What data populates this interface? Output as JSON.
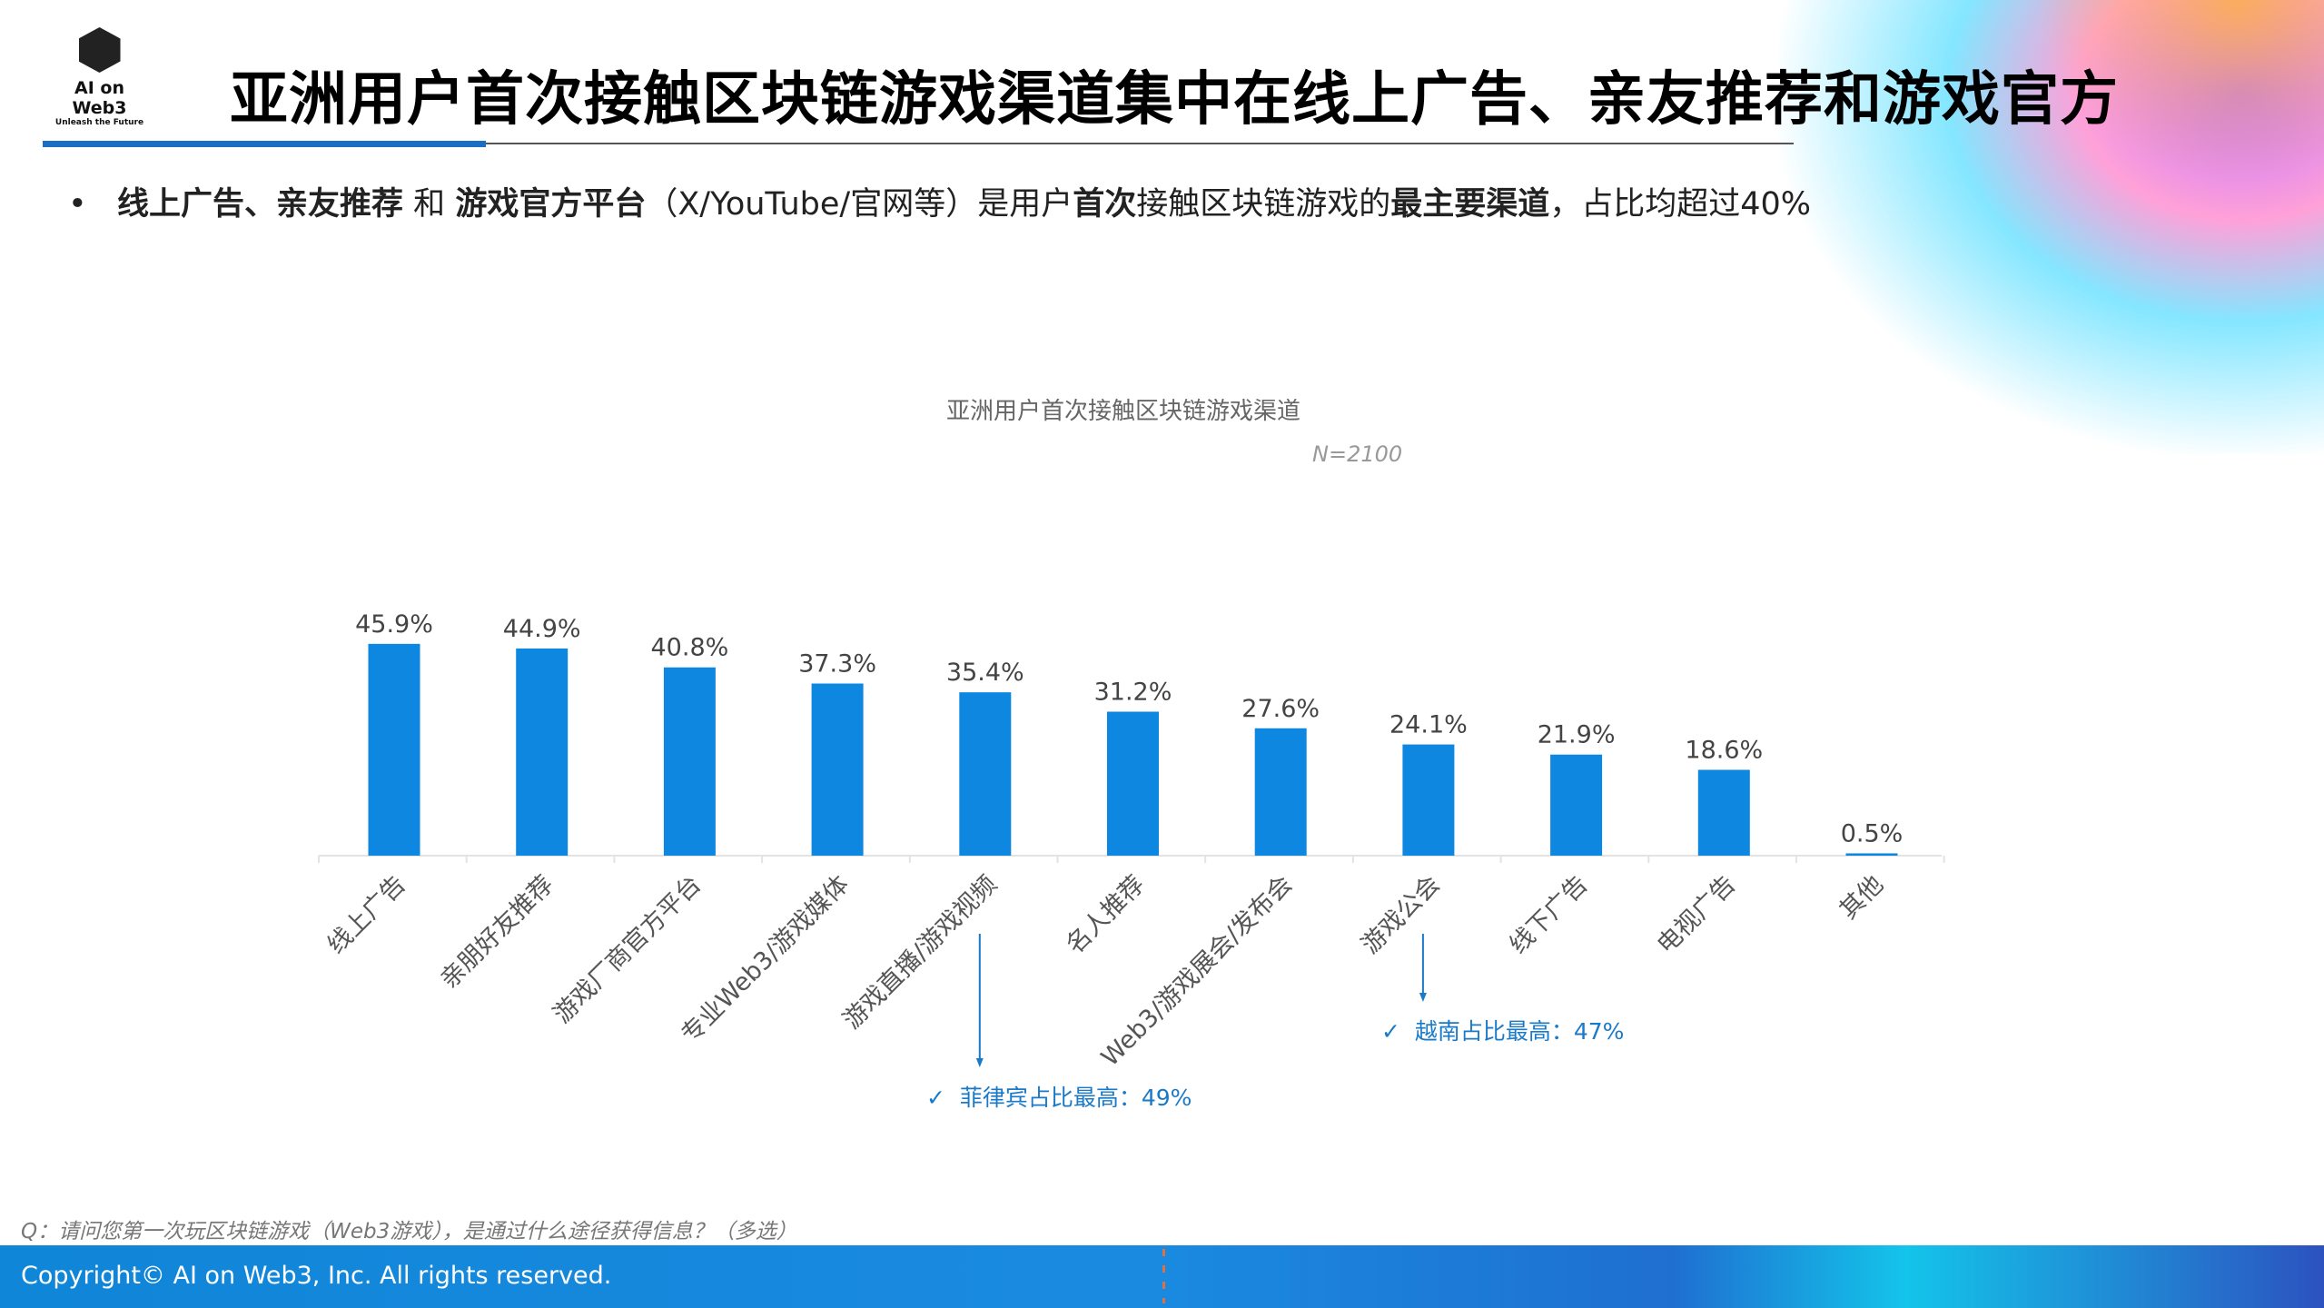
{
  "header": {
    "logo_name": "AI on Web3",
    "logo_tagline": "Unleash the Future",
    "title": "亚洲用户首次接触区块链游戏渠道集中在线上广告、亲友推荐和游戏官方"
  },
  "bullet": {
    "b1": "线上广告、亲友推荐",
    "t1": " 和 ",
    "b2": "游戏官方平台",
    "t2": "（X/YouTube/官网等）是用户",
    "b3": "首次",
    "t3": "接触区块链游戏的",
    "b4": "最主要渠道",
    "t4": "，占比均超过40%"
  },
  "chart_data": {
    "type": "bar",
    "title": "亚洲用户首次接触区块链游戏渠道",
    "subtitle": "N=2100",
    "categories": [
      "线上广告",
      "亲朋好友推荐",
      "游戏厂商官方平台",
      "专业Web3/游戏媒体",
      "游戏直播/游戏视频",
      "名人推荐",
      "Web3/游戏展会/发布会",
      "游戏公会",
      "线下广告",
      "电视广告",
      "其他"
    ],
    "values": [
      45.9,
      44.9,
      40.8,
      37.3,
      35.4,
      31.2,
      27.6,
      24.1,
      21.9,
      18.6,
      0.5
    ],
    "labels": [
      "45.9%",
      "44.9%",
      "40.8%",
      "37.3%",
      "35.4%",
      "31.2%",
      "27.6%",
      "24.1%",
      "21.9%",
      "18.6%",
      "0.5%"
    ],
    "unit": "%",
    "ylim": [
      0,
      50
    ],
    "bar_color": "#0e87e0",
    "grid": false,
    "annotations": [
      {
        "category": "游戏直播/游戏视频",
        "text": "菲律宾占比最高：49%"
      },
      {
        "category": "游戏公会",
        "text": "越南占比最高：47%"
      }
    ]
  },
  "annotation_check": "✓",
  "question": "Q：请问您第一次玩区块链游戏（Web3游戏），是通过什么途径获得信息？（多选）",
  "footer": {
    "copyright": "Copyright© AI on Web3, Inc. All rights reserved."
  }
}
